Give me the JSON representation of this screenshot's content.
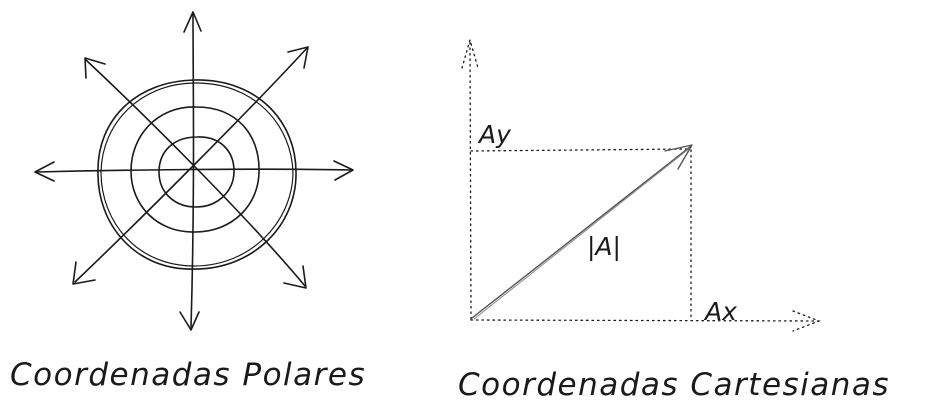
{
  "polar": {
    "caption": "Coordenadas Polares"
  },
  "cartesian": {
    "caption": "Coordenadas Cartesianas",
    "label_y": "Ay",
    "label_x": "Ax",
    "label_magnitude": "|A|"
  }
}
